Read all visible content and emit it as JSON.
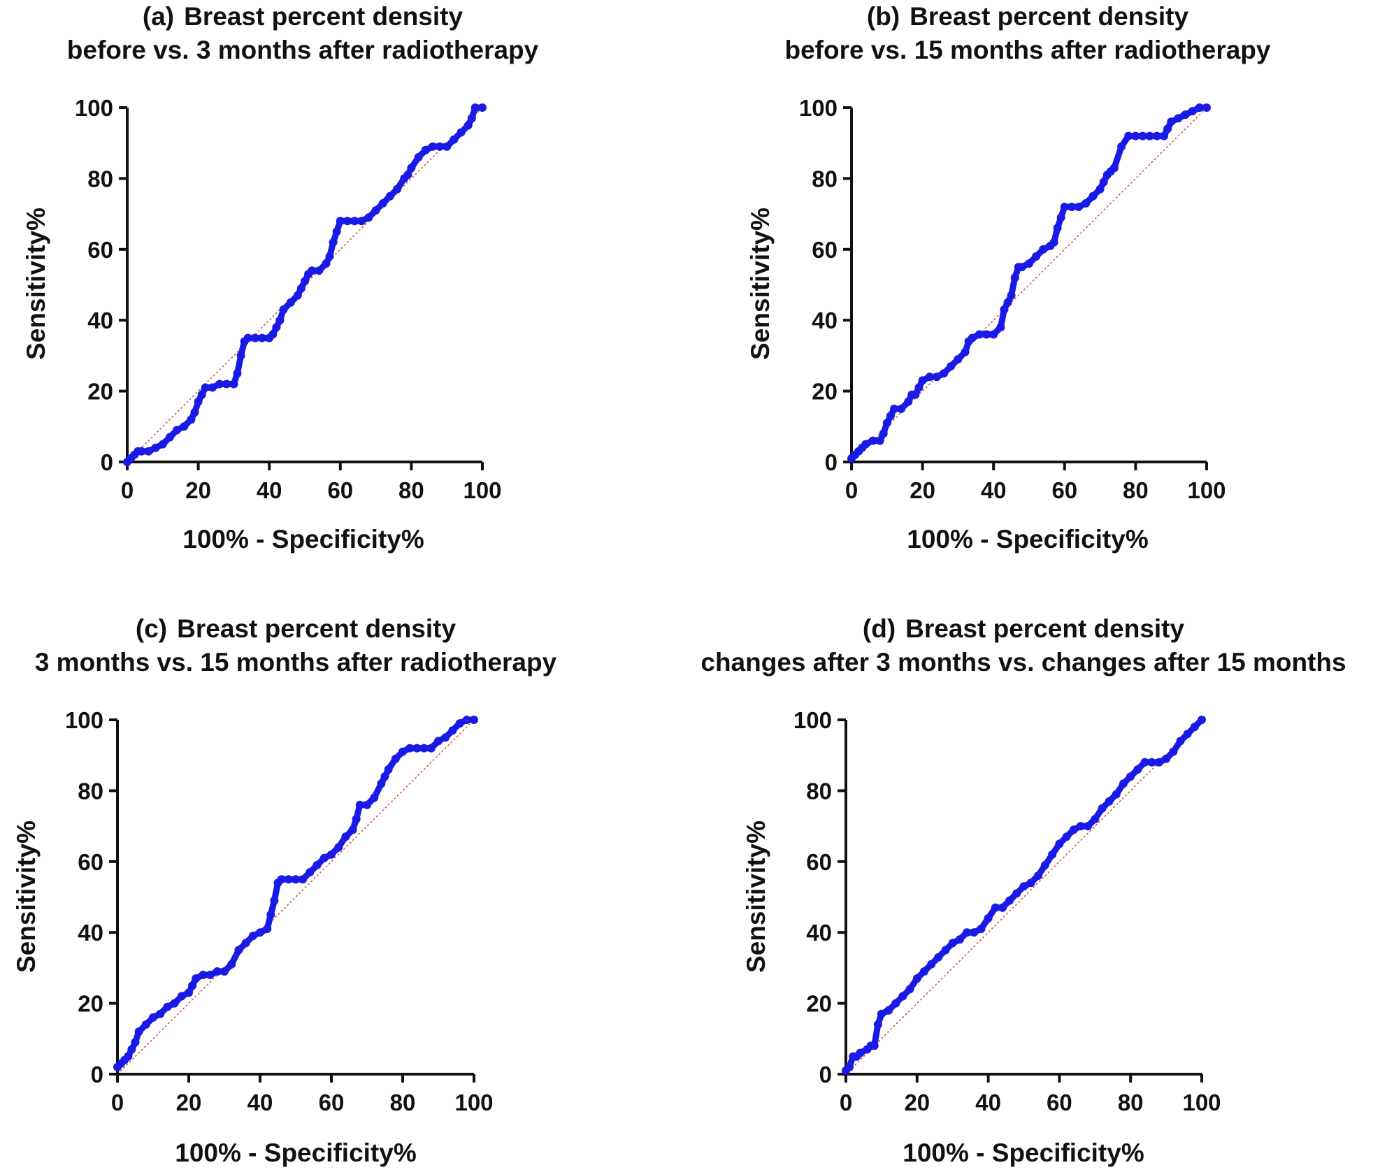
{
  "figure": {
    "line_color": "#1a1ae6",
    "reference_line_color": "#d05050",
    "text_color": "#111111"
  },
  "chart_data": [
    {
      "type": "line",
      "panel_label": "(a)",
      "title_line1": "Breast percent density",
      "title_line2": "before vs. 3 months after radiotherapy",
      "xlabel": "100% - Specificity%",
      "ylabel": "Sensitivity%",
      "xlim": [
        0,
        100
      ],
      "ylim": [
        0,
        100
      ],
      "xticks": [
        "0",
        "20",
        "40",
        "60",
        "80",
        "100"
      ],
      "yticks": [
        "0",
        "20",
        "40",
        "60",
        "80",
        "100"
      ],
      "grid": false,
      "reference_line": "diagonal",
      "series": [
        {
          "x": [
            0,
            1,
            2,
            3,
            4,
            6,
            8,
            10,
            12,
            14,
            16,
            18,
            19,
            20,
            21,
            22,
            24,
            26,
            28,
            30,
            31,
            32,
            33,
            34,
            36,
            38,
            40,
            41,
            42,
            43,
            44,
            46,
            48,
            49,
            50,
            51,
            52,
            54,
            56,
            57,
            58,
            59,
            60,
            62,
            64,
            66,
            68,
            70,
            72,
            74,
            76,
            78,
            79,
            80,
            82,
            84,
            86,
            88,
            90,
            92,
            94,
            96,
            97,
            98,
            100
          ],
          "y": [
            0,
            1,
            2,
            3,
            3,
            3,
            4,
            5,
            7,
            9,
            10,
            12,
            14,
            17,
            19,
            21,
            21,
            22,
            22,
            22,
            25,
            30,
            34,
            35,
            35,
            35,
            35,
            36,
            38,
            40,
            43,
            45,
            47,
            49,
            51,
            53,
            54,
            54,
            56,
            58,
            62,
            65,
            68,
            68,
            68,
            68,
            69,
            71,
            73,
            75,
            77,
            80,
            81,
            83,
            86,
            88,
            89,
            89,
            89,
            91,
            93,
            95,
            97,
            100,
            100
          ]
        }
      ]
    },
    {
      "type": "line",
      "panel_label": "(b)",
      "title_line1": "Breast percent density",
      "title_line2": "before vs. 15 months after radiotherapy",
      "xlabel": "100% - Specificity%",
      "ylabel": "Sensitivity%",
      "xlim": [
        0,
        100
      ],
      "ylim": [
        0,
        100
      ],
      "xticks": [
        "0",
        "20",
        "40",
        "60",
        "80",
        "100"
      ],
      "yticks": [
        "0",
        "20",
        "40",
        "60",
        "80",
        "100"
      ],
      "grid": false,
      "reference_line": "diagonal",
      "series": [
        {
          "x": [
            0,
            1,
            2,
            3,
            4,
            6,
            8,
            9,
            10,
            11,
            12,
            14,
            16,
            17,
            18,
            19,
            20,
            22,
            24,
            26,
            28,
            30,
            32,
            33,
            34,
            36,
            38,
            40,
            42,
            43,
            44,
            45,
            46,
            47,
            48,
            50,
            52,
            54,
            56,
            57,
            58,
            59,
            60,
            62,
            64,
            66,
            68,
            70,
            71,
            72,
            73,
            74,
            76,
            78,
            80,
            82,
            84,
            86,
            88,
            89,
            90,
            92,
            94,
            96,
            98,
            100
          ],
          "y": [
            1,
            2,
            3,
            4,
            5,
            6,
            6,
            8,
            11,
            13,
            15,
            15,
            17,
            19,
            19,
            21,
            23,
            24,
            24,
            25,
            27,
            29,
            31,
            34,
            35,
            36,
            36,
            36,
            38,
            43,
            45,
            47,
            52,
            55,
            55,
            56,
            58,
            60,
            61,
            62,
            66,
            69,
            72,
            72,
            72,
            73,
            75,
            77,
            79,
            81,
            82,
            83,
            89,
            92,
            92,
            92,
            92,
            92,
            92,
            94,
            96,
            97,
            98,
            99,
            100,
            100
          ]
        }
      ]
    },
    {
      "type": "line",
      "panel_label": "(c)",
      "title_line1": "Breast percent density",
      "title_line2": "3 months vs. 15 months after radiotherapy",
      "xlabel": "100% - Specificity%",
      "ylabel": "Sensitivity%",
      "xlim": [
        0,
        100
      ],
      "ylim": [
        0,
        100
      ],
      "xticks": [
        "0",
        "20",
        "40",
        "60",
        "80",
        "100"
      ],
      "yticks": [
        "0",
        "20",
        "40",
        "60",
        "80",
        "100"
      ],
      "grid": false,
      "reference_line": "diagonal",
      "series": [
        {
          "x": [
            0,
            1,
            2,
            3,
            4,
            5,
            6,
            8,
            10,
            12,
            14,
            16,
            18,
            20,
            21,
            22,
            24,
            26,
            28,
            30,
            32,
            34,
            36,
            38,
            40,
            42,
            43,
            44,
            45,
            46,
            48,
            50,
            52,
            54,
            56,
            58,
            60,
            62,
            64,
            66,
            67,
            68,
            70,
            72,
            74,
            75,
            76,
            78,
            80,
            82,
            84,
            86,
            88,
            90,
            92,
            94,
            96,
            98,
            100
          ],
          "y": [
            2,
            3,
            4,
            5,
            7,
            9,
            12,
            14,
            16,
            17,
            19,
            20,
            22,
            23,
            25,
            27,
            28,
            28,
            29,
            29,
            31,
            35,
            37,
            39,
            40,
            41,
            45,
            49,
            54,
            55,
            55,
            55,
            55,
            57,
            59,
            61,
            62,
            64,
            67,
            69,
            72,
            76,
            76,
            78,
            82,
            84,
            86,
            89,
            91,
            92,
            92,
            92,
            92,
            94,
            95,
            97,
            99,
            100,
            100
          ]
        }
      ]
    },
    {
      "type": "line",
      "panel_label": "(d)",
      "title_line1": "Breast percent density",
      "title_line2": "changes after 3 months vs. changes after 15 months",
      "xlabel": "100% - Specificity%",
      "ylabel": "Sensitivity%",
      "xlim": [
        0,
        100
      ],
      "ylim": [
        0,
        100
      ],
      "xticks": [
        "0",
        "20",
        "40",
        "60",
        "80",
        "100"
      ],
      "yticks": [
        "0",
        "20",
        "40",
        "60",
        "80",
        "100"
      ],
      "grid": false,
      "reference_line": "diagonal",
      "series": [
        {
          "x": [
            0,
            1,
            2,
            3,
            4,
            6,
            7,
            8,
            9,
            10,
            12,
            14,
            16,
            18,
            20,
            22,
            24,
            26,
            28,
            30,
            32,
            34,
            36,
            38,
            40,
            42,
            44,
            46,
            48,
            50,
            52,
            54,
            56,
            58,
            60,
            62,
            64,
            66,
            68,
            70,
            72,
            74,
            76,
            78,
            80,
            82,
            84,
            86,
            88,
            90,
            92,
            94,
            96,
            98,
            100
          ],
          "y": [
            1,
            2,
            5,
            5,
            6,
            7,
            8,
            8,
            14,
            17,
            18,
            20,
            22,
            24,
            27,
            29,
            31,
            33,
            35,
            37,
            38,
            40,
            40,
            41,
            44,
            47,
            47,
            49,
            51,
            53,
            54,
            56,
            59,
            62,
            65,
            67,
            69,
            70,
            70,
            72,
            75,
            77,
            79,
            82,
            84,
            86,
            88,
            88,
            88,
            89,
            91,
            94,
            96,
            98,
            100
          ]
        }
      ]
    }
  ]
}
